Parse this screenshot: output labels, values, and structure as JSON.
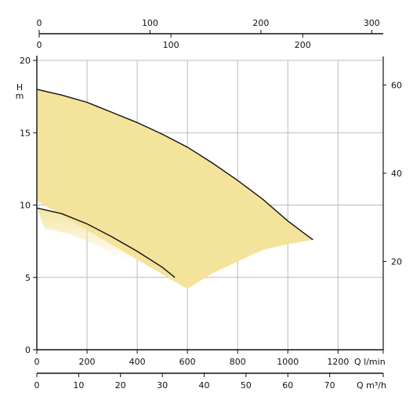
{
  "chart_data": {
    "type": "area",
    "primary_x": {
      "label": "Q l/min",
      "range": [
        0,
        1380
      ],
      "ticks": [
        "0",
        "200",
        "400",
        "600",
        "800",
        "1000",
        "1200"
      ],
      "tick_values": [
        0,
        200,
        400,
        600,
        800,
        1000,
        1200
      ]
    },
    "secondary_x_bottom": {
      "label": "Q m³/h",
      "range": [
        0,
        82.8
      ],
      "ticks": [
        "0",
        "10",
        "20",
        "30",
        "40",
        "50",
        "60",
        "70"
      ],
      "tick_values": [
        0,
        10,
        20,
        30,
        40,
        50,
        60,
        70
      ]
    },
    "secondary_x_top_1": {
      "label": "",
      "range": [
        0,
        1380
      ],
      "ticks": [
        "0",
        "100",
        "200",
        "300"
      ],
      "tick_values": [
        0,
        441.6,
        883.2,
        1324.8
      ]
    },
    "secondary_x_top_2": {
      "label": "",
      "range": [
        0,
        1380
      ],
      "ticks": [
        "0",
        "100",
        "200"
      ],
      "tick_values": [
        0,
        525,
        1050
      ]
    },
    "primary_y": {
      "label": "H m",
      "range": [
        0,
        20
      ],
      "ticks": [
        "0",
        "5",
        "10",
        "15",
        "20"
      ],
      "tick_values": [
        0,
        5,
        10,
        15,
        20
      ]
    },
    "secondary_y_right": {
      "label": "",
      "range": [
        0,
        20
      ],
      "ticks": [
        "20",
        "40",
        "60"
      ],
      "tick_values": [
        6.1,
        12.2,
        18.3
      ]
    },
    "grid": true,
    "series": [
      {
        "role": "max-curve",
        "x": [
          0,
          100,
          200,
          300,
          400,
          500,
          600,
          700,
          800,
          900,
          1000,
          1100
        ],
        "y": [
          18.0,
          17.6,
          17.1,
          16.4,
          15.7,
          14.9,
          14.0,
          12.9,
          11.7,
          10.4,
          8.9,
          7.6
        ]
      },
      {
        "role": "min-curve",
        "x": [
          0,
          100,
          200,
          300,
          400,
          500,
          550
        ],
        "y": [
          9.8,
          9.4,
          8.7,
          7.8,
          6.8,
          5.7,
          5.0
        ]
      },
      {
        "role": "operating-region",
        "x": [
          0,
          100,
          200,
          300,
          400,
          500,
          600,
          700,
          800,
          900,
          1000,
          1100,
          1100,
          1000,
          900,
          800,
          700,
          600,
          0
        ],
        "y": [
          18.0,
          17.6,
          17.1,
          16.4,
          15.7,
          14.9,
          14.0,
          12.9,
          11.7,
          10.4,
          8.9,
          7.6,
          7.6,
          7.3,
          6.9,
          6.1,
          5.3,
          4.2,
          10.3
        ]
      }
    ],
    "colors": {
      "fill": "#f4e39b",
      "curve": "#111111",
      "grid": "#bbbbbb",
      "axis": "#111111"
    }
  }
}
